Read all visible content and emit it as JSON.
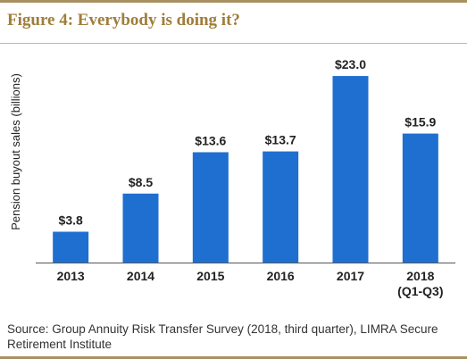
{
  "figure": {
    "title": "Figure 4: Everybody is doing it?",
    "source": "Source: Group Annuity Risk Transfer Survey (2018, third quarter), LIMRA Secure Retirement Institute"
  },
  "colors": {
    "bar": "#1f6fd0",
    "accent": "#a07d3a",
    "rule": "#a89060",
    "axis": "#555555",
    "text": "#222222"
  },
  "chart_data": {
    "type": "bar",
    "title": "Figure 4: Everybody is doing it?",
    "ylabel": "Pension buyout sales (billions)",
    "xlabel": "",
    "categories": [
      "2013",
      "2014",
      "2015",
      "2016",
      "2017",
      "2018"
    ],
    "category_sublabels": [
      "",
      "",
      "",
      "",
      "",
      "(Q1-Q3)"
    ],
    "values": [
      3.8,
      8.5,
      13.6,
      13.7,
      23.0,
      15.9
    ],
    "data_labels": [
      "$3.8",
      "$8.5",
      "$13.6",
      "$13.7",
      "$23.0",
      "$15.9"
    ],
    "ylim": [
      0,
      24
    ],
    "grid": false,
    "legend": "none"
  }
}
